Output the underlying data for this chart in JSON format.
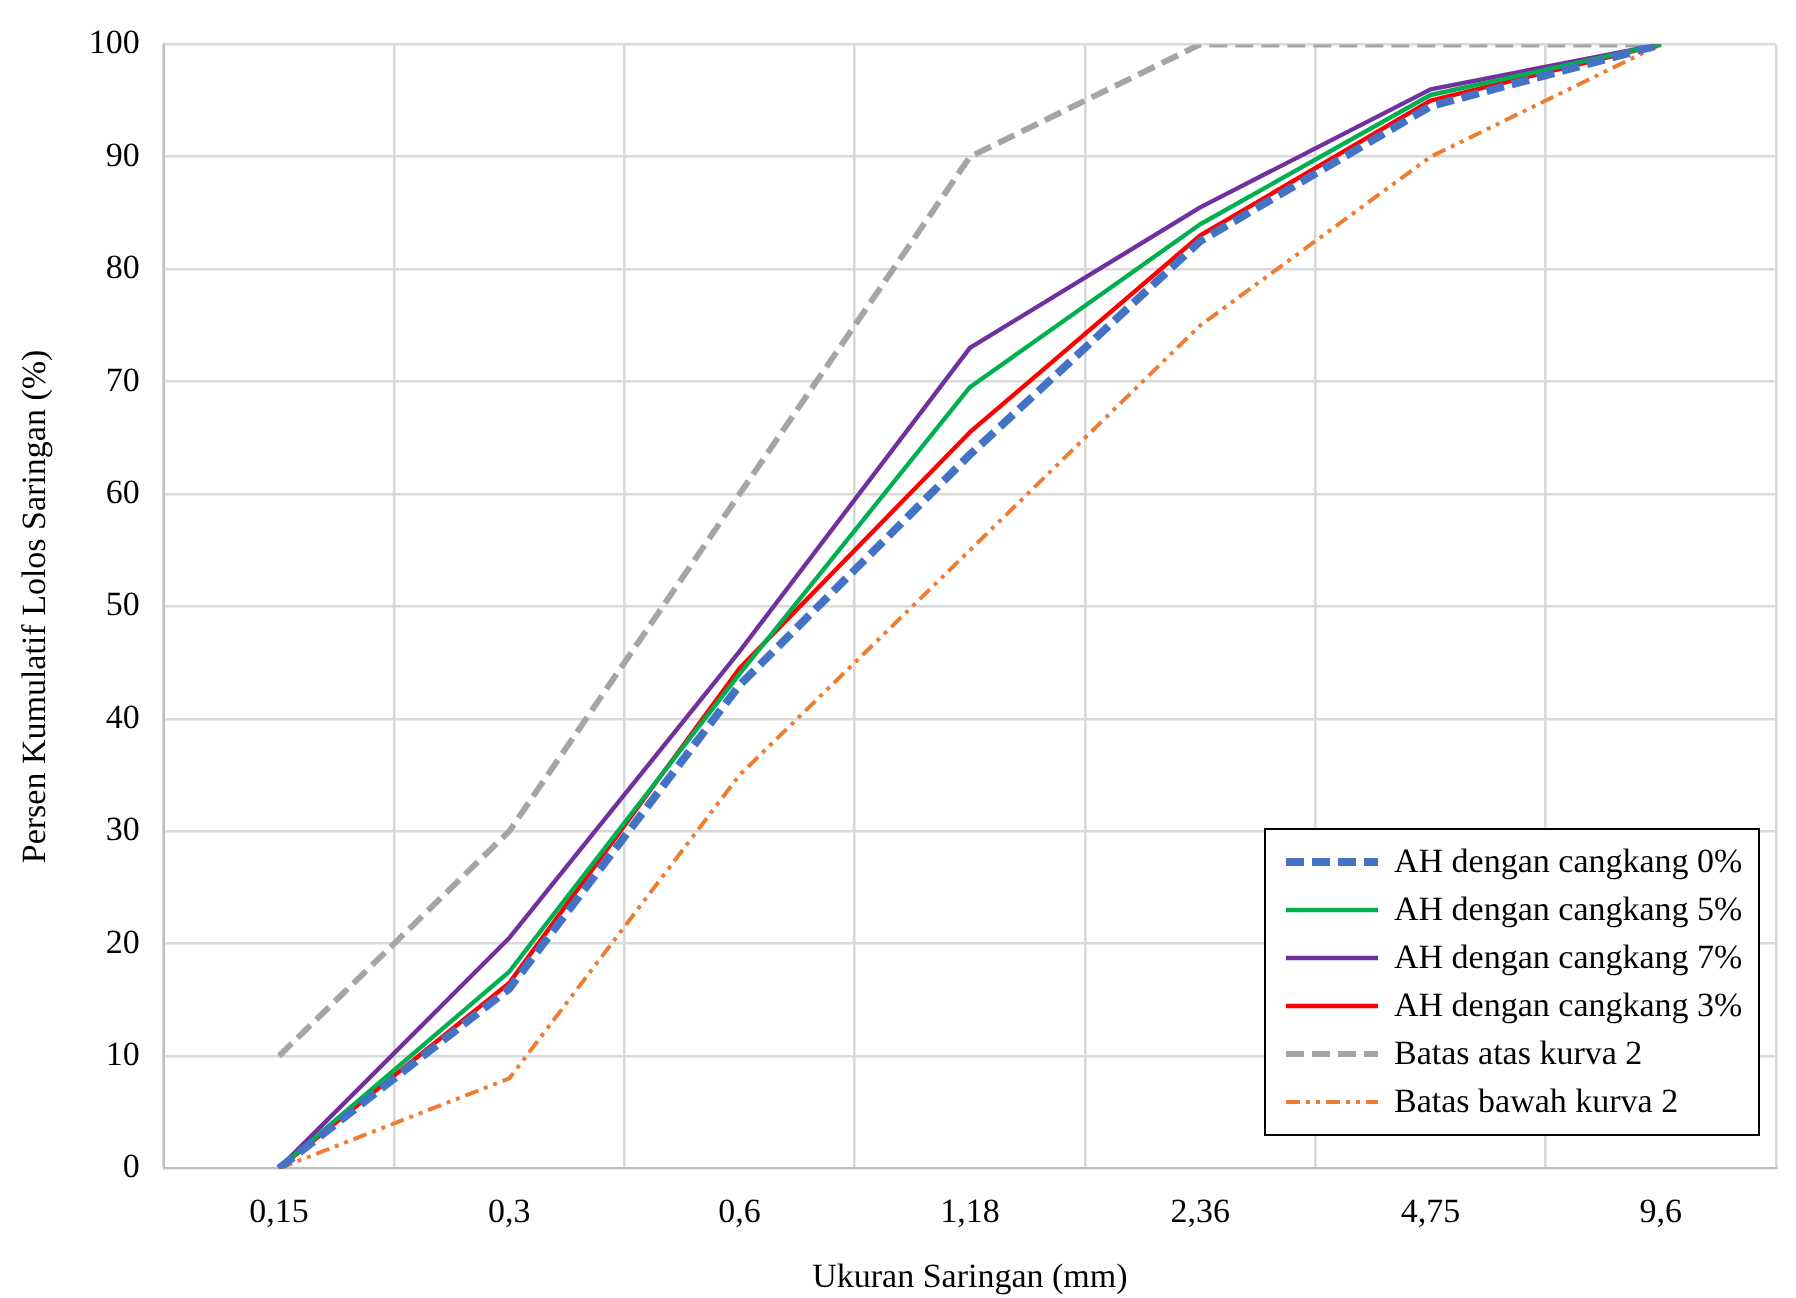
{
  "chart_data": {
    "type": "line",
    "xlabel": "Ukuran Saringan (mm)",
    "ylabel": "Persen Kumulatif Lolos Saringan (%)",
    "categories": [
      "0,15",
      "0,3",
      "0,6",
      "1,18",
      "2,36",
      "4,75",
      "9,6"
    ],
    "ylim": [
      0,
      100
    ],
    "yticks": [
      0,
      10,
      20,
      30,
      40,
      50,
      60,
      70,
      80,
      90,
      100
    ],
    "grid": true,
    "legend": "bottom right",
    "marker": "none",
    "series": [
      {
        "name": "AH dengan cangkang 0%",
        "color": "#4472c4",
        "line_style": "dashed",
        "values": [
          0,
          16,
          43,
          63.5,
          82.5,
          94.5,
          100
        ]
      },
      {
        "name": "AH dengan cangkang 5%",
        "color": "#00b050",
        "line_style": "solid",
        "values": [
          0,
          17.5,
          44,
          69.5,
          84,
          95.5,
          100
        ]
      },
      {
        "name": "AH dengan cangkang 7%",
        "color": "#7030a0",
        "line_style": "solid",
        "values": [
          0,
          20.5,
          46,
          73,
          85.5,
          96,
          100
        ]
      },
      {
        "name": "AH dengan cangkang 3%",
        "color": "#ff0000",
        "line_style": "solid",
        "values": [
          0,
          16.5,
          44.5,
          65.5,
          83,
          95,
          100
        ]
      },
      {
        "name": "Batas atas kurva 2",
        "color": "#a5a5a5",
        "line_style": "dashed",
        "values": [
          10,
          30,
          60,
          90,
          100,
          100,
          100
        ]
      },
      {
        "name": "Batas bawah kurva 2",
        "color": "#ed7d31",
        "line_style": "dotted",
        "values": [
          0,
          8,
          35,
          55,
          75,
          90,
          100
        ]
      }
    ]
  }
}
